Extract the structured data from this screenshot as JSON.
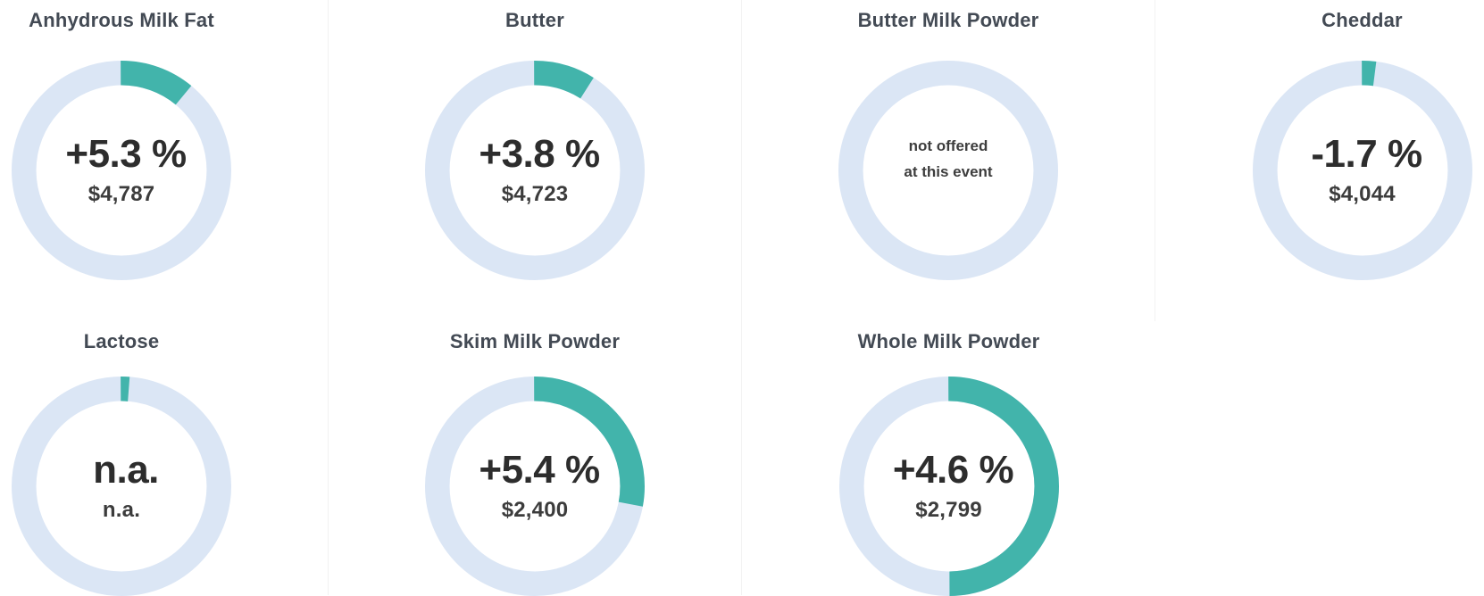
{
  "colors": {
    "arc_teal": "#42b4ab",
    "ring_track_blue": "#dbe6f5",
    "title_text": "#434a54",
    "value_text": "#2d2d2d",
    "price_text": "#3c3c3c",
    "divider": "#f2f2f2",
    "background": "#ffffff"
  },
  "chart_data": {
    "type": "donut",
    "layout": {
      "columns": 4,
      "rows": 2,
      "legend": "none",
      "arc_start": "top",
      "arc_direction": "clockwise"
    },
    "products": [
      {
        "title": "Anhydrous Milk Fat",
        "change_label": "+5.3 %",
        "change_pct": 5.3,
        "price_label": "$4,787",
        "price": 4787,
        "arc_fraction": 0.11
      },
      {
        "title": "Butter",
        "change_label": "+3.8 %",
        "change_pct": 3.8,
        "price_label": "$4,723",
        "price": 4723,
        "arc_fraction": 0.09
      },
      {
        "title": "Butter Milk Powder",
        "status_lines": [
          "not offered",
          "at this event"
        ],
        "arc_fraction": 0
      },
      {
        "title": "Cheddar",
        "change_label": "-1.7 %",
        "change_pct": -1.7,
        "price_label": "$4,044",
        "price": 4044,
        "arc_fraction": 0.02
      },
      {
        "title": "Lactose",
        "change_label": "n.a.",
        "price_label": "n.a.",
        "arc_fraction": 0.012
      },
      {
        "title": "Skim Milk Powder",
        "change_label": "+5.4 %",
        "change_pct": 5.4,
        "price_label": "$2,400",
        "price": 2400,
        "arc_fraction": 0.28
      },
      {
        "title": "Whole Milk Powder",
        "change_label": "+4.6 %",
        "change_pct": 4.6,
        "price_label": "$2,799",
        "price": 2799,
        "arc_fraction": 0.5
      }
    ]
  }
}
